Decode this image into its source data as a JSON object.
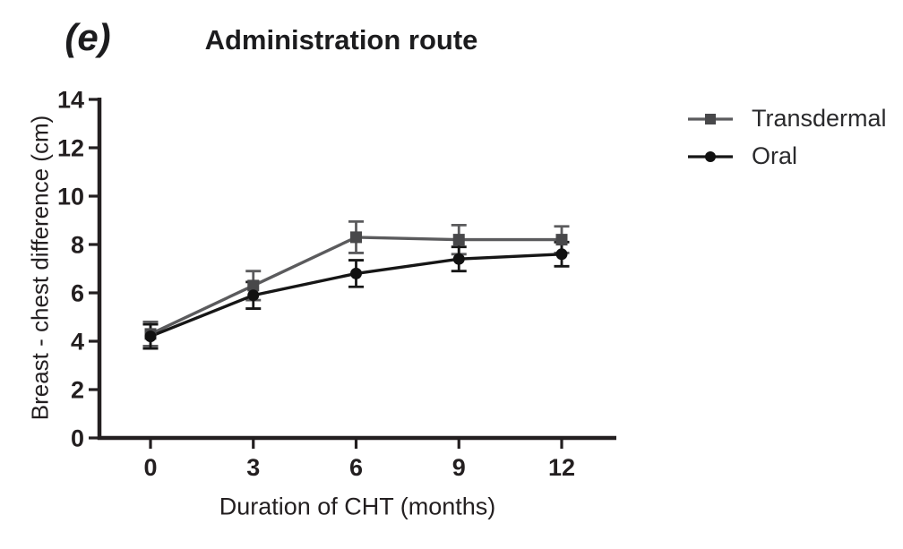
{
  "figure": {
    "panel_label": "(e)",
    "title": "Administration route"
  },
  "chart_data": {
    "type": "line",
    "title": "Administration route",
    "x": [
      0,
      3,
      6,
      9,
      12
    ],
    "xlabel": "Duration of CHT (months)",
    "ylabel": "Breast - chest difference (cm)",
    "ylim": [
      0,
      14
    ],
    "ytick_step": 2,
    "xticks": [
      0,
      3,
      6,
      9,
      12
    ],
    "grid": false,
    "legend_position": "top-right",
    "axis_color": "#231f20",
    "text_color": "#231f20",
    "error_bars": true,
    "series": [
      {
        "name": "Transdermal",
        "marker": "square",
        "color": "#5b5b5d",
        "marker_color": "#48484a",
        "values": [
          4.3,
          6.3,
          8.3,
          8.2,
          8.2
        ],
        "errors": [
          0.5,
          0.6,
          0.65,
          0.6,
          0.55
        ]
      },
      {
        "name": "Oral",
        "marker": "circle",
        "color": "#161616",
        "marker_color": "#111111",
        "values": [
          4.2,
          5.9,
          6.8,
          7.4,
          7.6
        ],
        "errors": [
          0.5,
          0.55,
          0.55,
          0.5,
          0.5
        ]
      }
    ]
  }
}
